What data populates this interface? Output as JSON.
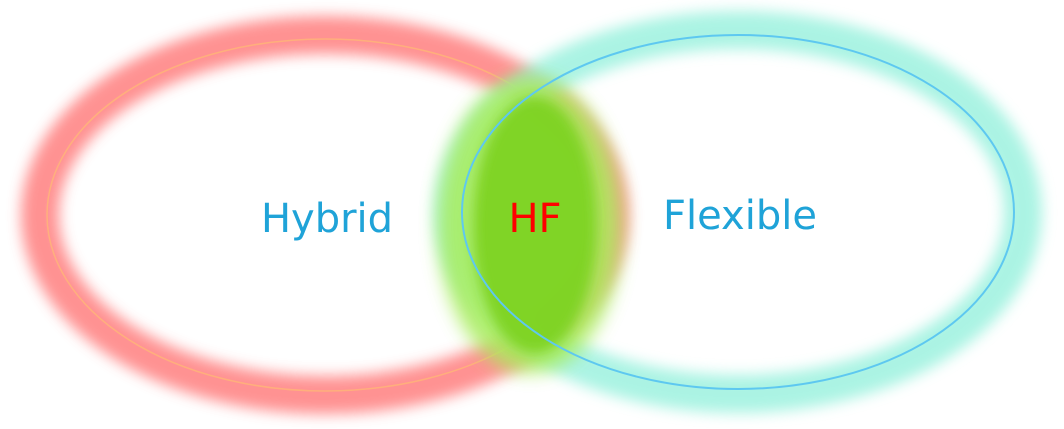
{
  "diagram": {
    "type": "venn",
    "labels": {
      "left": "Hybrid",
      "right": "Flexible",
      "intersection": "HF"
    },
    "colors": {
      "left_ring": "#ff7f7f",
      "left_ring_line": "#ffb27a",
      "right_ring": "#8ff0da",
      "right_ring_line": "#5ec8f0",
      "intersection_glow": "#a8ec5c",
      "intersection_fill": "#7ed321",
      "label_text": "#1fa3d8",
      "intersection_text": "#ff0000"
    }
  }
}
